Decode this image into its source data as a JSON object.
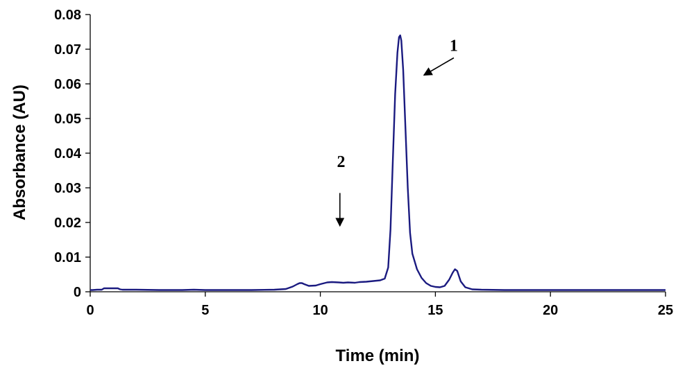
{
  "chart_data": {
    "type": "line",
    "xlabel": "Time (min)",
    "ylabel": "Absorbance (AU)",
    "xlim": [
      0,
      25
    ],
    "ylim": [
      0,
      0.08
    ],
    "x_ticks": [
      "0",
      "5",
      "10",
      "15",
      "20",
      "25"
    ],
    "y_ticks": [
      "0",
      "0.01",
      "0.02",
      "0.03",
      "0.04",
      "0.05",
      "0.06",
      "0.07",
      "0.08"
    ],
    "grid": false,
    "legend": "none",
    "line_color": "#1a1a80",
    "series": [
      {
        "x": [
          0,
          0.1,
          0.3,
          0.5,
          0.6,
          0.7,
          1.2,
          1.3,
          1.4,
          2,
          3,
          4,
          4.5,
          5,
          6,
          7,
          8,
          8.5,
          8.8,
          9.0,
          9.1,
          9.2,
          9.3,
          9.5,
          9.8,
          10.0,
          10.3,
          10.5,
          10.8,
          11,
          11.2,
          11.5,
          11.7,
          12,
          12.3,
          12.6,
          12.8,
          12.95,
          13.05,
          13.15,
          13.25,
          13.35,
          13.42,
          13.47,
          13.52,
          13.6,
          13.7,
          13.8,
          13.9,
          14.0,
          14.2,
          14.4,
          14.6,
          14.8,
          15.0,
          15.2,
          15.4,
          15.6,
          15.75,
          15.85,
          15.95,
          16.1,
          16.3,
          16.6,
          17,
          18,
          20,
          22,
          24,
          25
        ],
        "values": [
          0.0005,
          0.0005,
          0.0006,
          0.0006,
          0.001,
          0.001,
          0.001,
          0.0007,
          0.0006,
          0.0006,
          0.0005,
          0.0005,
          0.0006,
          0.0005,
          0.0005,
          0.0005,
          0.0006,
          0.0008,
          0.0015,
          0.0022,
          0.0025,
          0.0025,
          0.0022,
          0.0017,
          0.0018,
          0.0022,
          0.0027,
          0.0028,
          0.0027,
          0.0026,
          0.0027,
          0.0026,
          0.0028,
          0.0029,
          0.0031,
          0.0033,
          0.0038,
          0.007,
          0.018,
          0.038,
          0.057,
          0.069,
          0.0735,
          0.074,
          0.0725,
          0.064,
          0.047,
          0.03,
          0.017,
          0.011,
          0.0065,
          0.004,
          0.0025,
          0.0017,
          0.0014,
          0.0013,
          0.0017,
          0.0035,
          0.0055,
          0.0065,
          0.006,
          0.003,
          0.0013,
          0.0007,
          0.0006,
          0.0005,
          0.0005,
          0.0005,
          0.0005,
          0.0005
        ]
      }
    ],
    "annotations": [
      {
        "label": "1",
        "x": 15.8,
        "y": 0.0695,
        "arrow_from": [
          15.8,
          0.0675
        ],
        "arrow_to": [
          14.5,
          0.0625
        ]
      },
      {
        "label": "2",
        "x": 10.9,
        "y": 0.036,
        "arrow_from": [
          10.85,
          0.0285
        ],
        "arrow_to": [
          10.85,
          0.019
        ]
      }
    ]
  }
}
